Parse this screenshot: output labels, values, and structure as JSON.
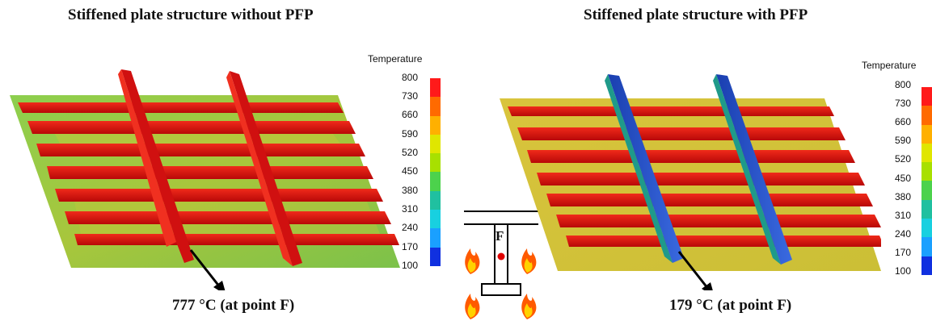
{
  "titles": {
    "left": "Stiffened plate structure without PFP",
    "right": "Stiffened plate structure with PFP"
  },
  "legend": {
    "title": "Temperature",
    "labels": [
      "800",
      "730",
      "660",
      "590",
      "520",
      "450",
      "380",
      "310",
      "240",
      "170",
      "100"
    ],
    "colors": [
      "#ff1a1a",
      "#ff6a00",
      "#ffb000",
      "#e0e600",
      "#a8e000",
      "#4cd24c",
      "#20c0a0",
      "#18d0e0",
      "#1aa0ff",
      "#1060ff",
      "#1030e0"
    ]
  },
  "results": {
    "left": "777 °C (at point F)",
    "right": "179 °C (at point F)"
  },
  "section": {
    "point_label": "F"
  },
  "colors": {
    "plate_hot": "#7fc34a",
    "plate_protected": "#d6c23a",
    "stiffener_hot": "#e01010",
    "girder_protected": "#2455c8",
    "flame_outer": "#ff5a00",
    "flame_inner": "#ffd200",
    "point_marker": "#e00000"
  }
}
